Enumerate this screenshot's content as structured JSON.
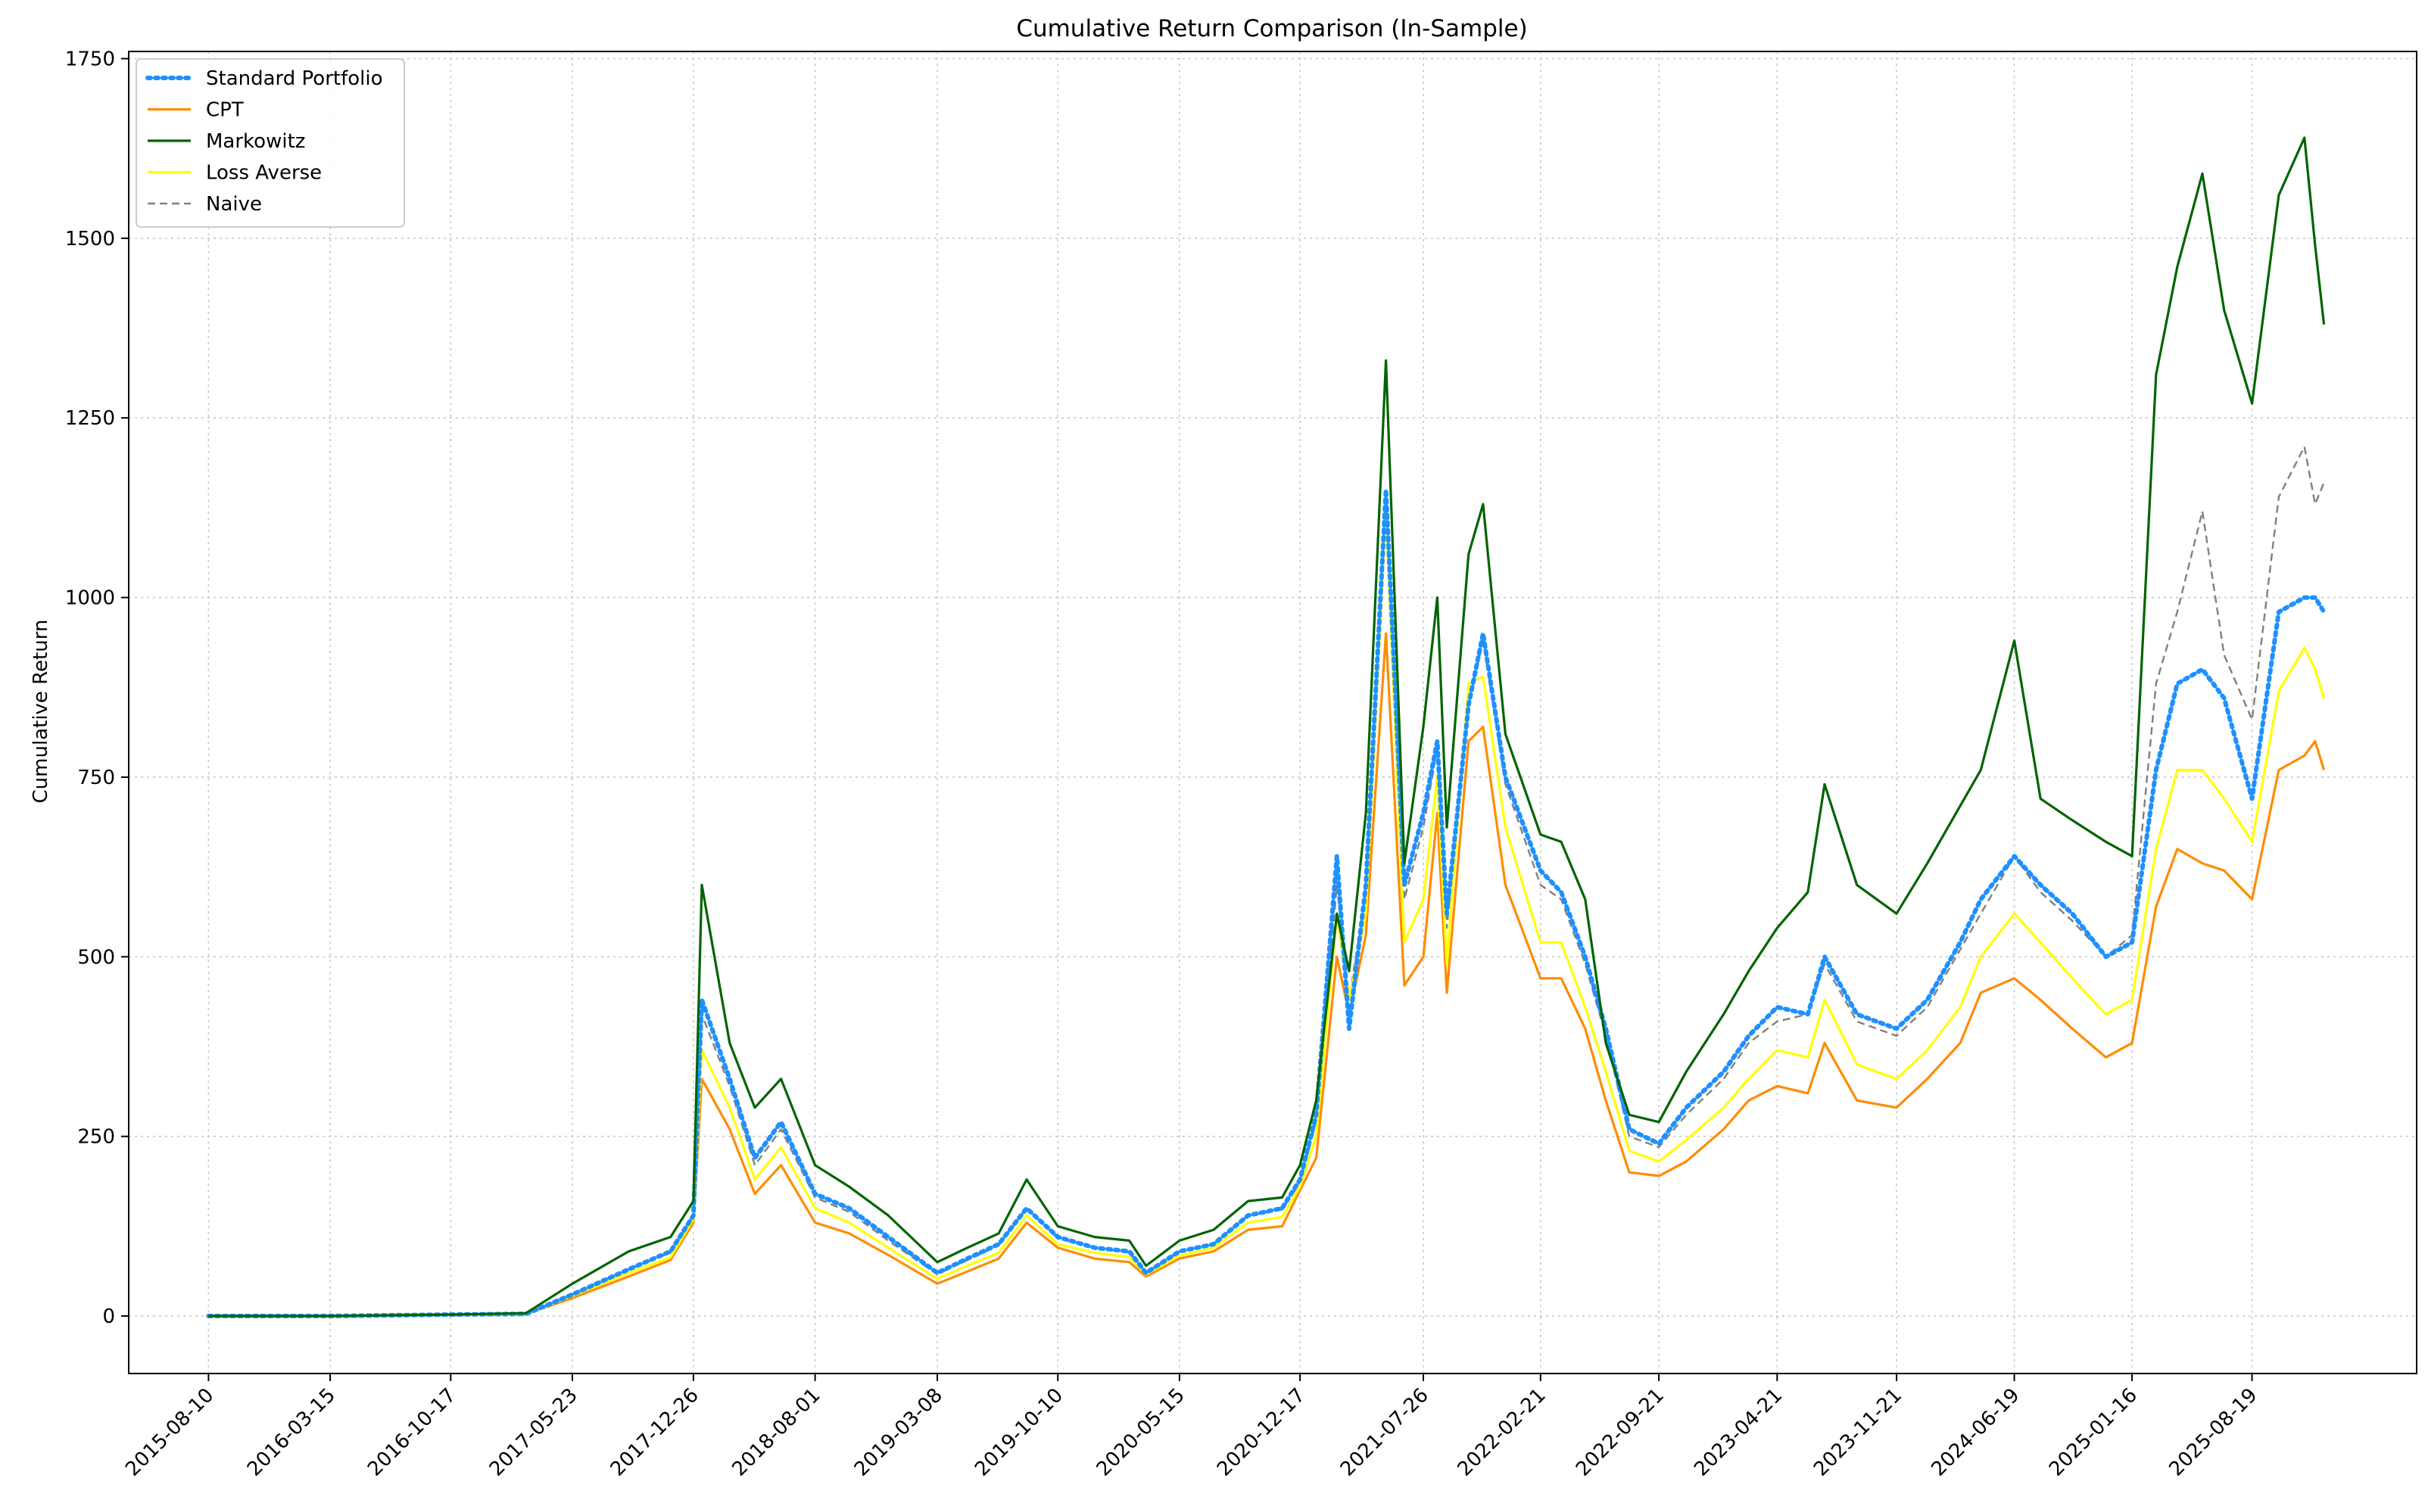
{
  "chart_data": {
    "type": "line",
    "title": "Cumulative Return Comparison (In-Sample)",
    "xlabel": "",
    "ylabel": "Cumulative Return",
    "ylim": [
      -80,
      1760
    ],
    "yticks": [
      0,
      250,
      500,
      750,
      1000,
      1250,
      1500,
      1750
    ],
    "xlim": [
      "2015-03-20",
      "2026-06-10"
    ],
    "xtick_labels": [
      "2015-08-10",
      "2016-03-15",
      "2016-10-17",
      "2017-05-23",
      "2017-12-26",
      "2018-08-01",
      "2019-03-08",
      "2019-10-10",
      "2020-05-15",
      "2020-12-17",
      "2021-07-26",
      "2022-02-21",
      "2022-09-21",
      "2023-04-21",
      "2023-11-21",
      "2024-06-19",
      "2025-01-16",
      "2025-08-19"
    ],
    "grid": true,
    "legend_position": "upper left",
    "x": [
      "2015-08-10",
      "2016-03-15",
      "2016-10-17",
      "2017-03-01",
      "2017-05-23",
      "2017-09-01",
      "2017-11-15",
      "2017-12-26",
      "2018-01-10",
      "2018-03-01",
      "2018-04-15",
      "2018-06-01",
      "2018-08-01",
      "2018-10-01",
      "2018-12-10",
      "2019-03-08",
      "2019-05-01",
      "2019-06-26",
      "2019-08-15",
      "2019-10-10",
      "2019-12-15",
      "2020-02-15",
      "2020-03-16",
      "2020-05-15",
      "2020-07-15",
      "2020-09-15",
      "2020-11-15",
      "2020-12-17",
      "2021-01-15",
      "2021-02-21",
      "2021-03-15",
      "2021-04-14",
      "2021-05-20",
      "2021-06-22",
      "2021-07-26",
      "2021-08-20",
      "2021-09-06",
      "2021-10-15",
      "2021-11-10",
      "2021-12-20",
      "2022-02-21",
      "2022-03-30",
      "2022-05-12",
      "2022-06-18",
      "2022-07-30",
      "2022-09-21",
      "2022-11-09",
      "2023-01-15",
      "2023-03-01",
      "2023-04-21",
      "2023-06-15",
      "2023-07-15",
      "2023-09-11",
      "2023-11-21",
      "2024-01-15",
      "2024-03-14",
      "2024-04-20",
      "2024-06-19",
      "2024-08-05",
      "2024-10-01",
      "2024-11-30",
      "2025-01-16",
      "2025-02-28",
      "2025-04-07",
      "2025-05-22",
      "2025-06-30",
      "2025-08-19",
      "2025-10-06",
      "2025-11-21",
      "2025-12-10",
      "2025-12-26"
    ],
    "series": [
      {
        "name": "Standard Portfolio",
        "color": "#1e90ff",
        "style": "dotted",
        "values": [
          0,
          0,
          2,
          3,
          30,
          65,
          90,
          140,
          440,
          330,
          220,
          270,
          170,
          150,
          110,
          60,
          80,
          100,
          150,
          110,
          95,
          90,
          60,
          90,
          100,
          140,
          150,
          190,
          280,
          640,
          400,
          600,
          1150,
          600,
          700,
          800,
          560,
          850,
          950,
          750,
          620,
          590,
          500,
          400,
          260,
          240,
          290,
          340,
          390,
          430,
          420,
          500,
          420,
          400,
          440,
          520,
          580,
          640,
          600,
          560,
          500,
          520,
          760,
          880,
          900,
          860,
          720,
          980,
          1000,
          1000,
          980
        ]
      },
      {
        "name": "CPT",
        "color": "#ff8c00",
        "style": "solid",
        "values": [
          0,
          0,
          2,
          3,
          25,
          55,
          78,
          130,
          330,
          260,
          170,
          210,
          130,
          115,
          85,
          45,
          62,
          80,
          130,
          95,
          80,
          75,
          55,
          80,
          90,
          120,
          125,
          175,
          220,
          500,
          420,
          530,
          950,
          460,
          500,
          700,
          450,
          800,
          820,
          600,
          470,
          470,
          400,
          300,
          200,
          195,
          215,
          260,
          300,
          320,
          310,
          380,
          300,
          290,
          330,
          380,
          450,
          470,
          440,
          400,
          360,
          380,
          570,
          650,
          630,
          620,
          580,
          760,
          780,
          800,
          760
        ]
      },
      {
        "name": "Markowitz",
        "color": "#006400",
        "style": "solid",
        "values": [
          0,
          0,
          2,
          4,
          45,
          90,
          110,
          160,
          600,
          380,
          290,
          330,
          210,
          180,
          140,
          75,
          95,
          115,
          190,
          125,
          110,
          105,
          70,
          105,
          120,
          160,
          165,
          210,
          300,
          560,
          480,
          700,
          1330,
          630,
          820,
          1000,
          680,
          1060,
          1130,
          810,
          670,
          660,
          580,
          380,
          280,
          270,
          340,
          420,
          480,
          540,
          590,
          740,
          600,
          560,
          630,
          710,
          760,
          940,
          720,
          690,
          660,
          640,
          1310,
          1460,
          1590,
          1400,
          1270,
          1560,
          1640,
          1490,
          1380
        ]
      },
      {
        "name": "Loss Averse",
        "color": "#ffff00",
        "style": "solid",
        "values": [
          0,
          0,
          2,
          3,
          28,
          60,
          82,
          135,
          370,
          290,
          190,
          235,
          150,
          130,
          95,
          52,
          70,
          88,
          140,
          100,
          88,
          82,
          58,
          84,
          95,
          130,
          138,
          180,
          250,
          560,
          440,
          560,
          1120,
          520,
          580,
          750,
          490,
          880,
          890,
          680,
          520,
          520,
          430,
          340,
          230,
          215,
          245,
          290,
          330,
          370,
          360,
          440,
          350,
          330,
          370,
          430,
          500,
          560,
          520,
          470,
          420,
          440,
          650,
          760,
          760,
          720,
          660,
          870,
          930,
          900,
          860
        ]
      },
      {
        "name": "Naive",
        "color": "#808080",
        "style": "dashed",
        "values": [
          0,
          0,
          2,
          3,
          30,
          65,
          88,
          140,
          420,
          320,
          210,
          260,
          165,
          145,
          105,
          58,
          78,
          98,
          150,
          108,
          95,
          88,
          60,
          90,
          100,
          140,
          148,
          185,
          270,
          600,
          440,
          590,
          1150,
          580,
          680,
          790,
          540,
          850,
          940,
          740,
          600,
          580,
          490,
          390,
          250,
          235,
          280,
          330,
          380,
          410,
          420,
          490,
          410,
          390,
          430,
          510,
          560,
          640,
          590,
          550,
          500,
          530,
          880,
          980,
          1120,
          920,
          830,
          1140,
          1210,
          1130,
          1160
        ]
      }
    ]
  }
}
